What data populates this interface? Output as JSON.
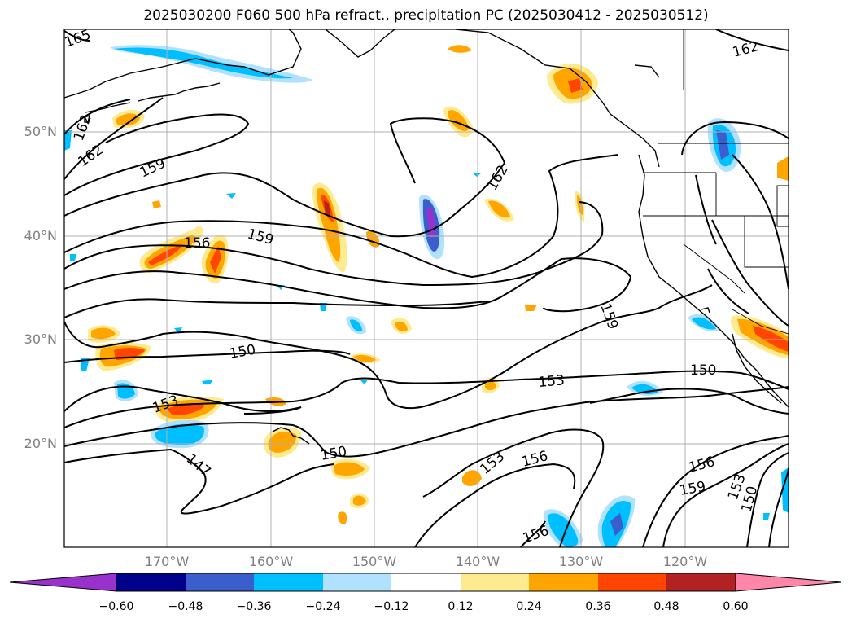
{
  "title": "2025030200 F060 500 hPa refract., precipitation PC (2025030412 - 2025030512)",
  "lat_labels": [
    "50°N",
    "40°N",
    "30°N",
    "20°N"
  ],
  "lon_labels": [
    "170°W",
    "160°W",
    "150°W",
    "140°W",
    "130°W",
    "120°W"
  ],
  "contour_labels": [
    "165",
    "162",
    "162",
    "159",
    "156",
    "159",
    "162",
    "159",
    "150",
    "153",
    "150",
    "153",
    "147",
    "150",
    "153",
    "156",
    "156",
    "156",
    "159",
    "153",
    "150",
    "162",
    "165"
  ],
  "colorbar": {
    "labels": [
      "−0.60",
      "−0.48",
      "−0.36",
      "−0.24",
      "−0.12",
      "0.12",
      "0.24",
      "0.36",
      "0.48",
      "0.60"
    ],
    "colors": [
      "#9932cc",
      "#00008b",
      "#3a5fcd",
      "#00bfff",
      "#b0e2ff",
      "#ffffff",
      "#ffeb8f",
      "#ffa500",
      "#ff4500",
      "#b22222",
      "#ff86a8"
    ]
  }
}
